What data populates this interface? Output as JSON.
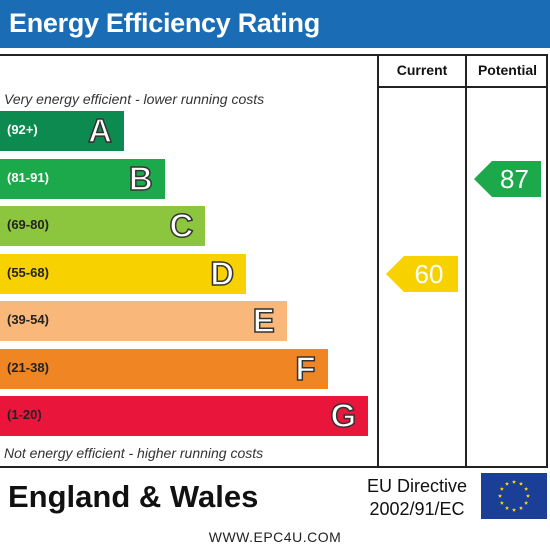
{
  "header": {
    "title": "Energy Efficiency Rating"
  },
  "columns": {
    "current": "Current",
    "potential": "Potential"
  },
  "notes": {
    "top": "Very energy efficient - lower running costs",
    "bottom": "Not energy efficient - higher running costs"
  },
  "chart_data": {
    "type": "bar",
    "title": "Energy Efficiency Rating",
    "bands": [
      {
        "letter": "A",
        "range": "(92+)",
        "color": "#0d8a4f"
      },
      {
        "letter": "B",
        "range": "(81-91)",
        "color": "#1ba94c"
      },
      {
        "letter": "C",
        "range": "(69-80)",
        "color": "#8cc63e"
      },
      {
        "letter": "D",
        "range": "(55-68)",
        "color": "#f7d100"
      },
      {
        "letter": "E",
        "range": "(39-54)",
        "color": "#f9b77a"
      },
      {
        "letter": "F",
        "range": "(21-38)",
        "color": "#f08524"
      },
      {
        "letter": "G",
        "range": "(1-20)",
        "color": "#e9153b"
      }
    ],
    "current": {
      "value": 60,
      "band": "D",
      "color": "#f7d100"
    },
    "potential": {
      "value": 87,
      "band": "B",
      "color": "#1ba94c"
    }
  },
  "footer": {
    "country": "England & Wales",
    "directive_line1": "EU Directive",
    "directive_line2": "2002/91/EC",
    "url": "WWW.EPC4U.COM"
  }
}
